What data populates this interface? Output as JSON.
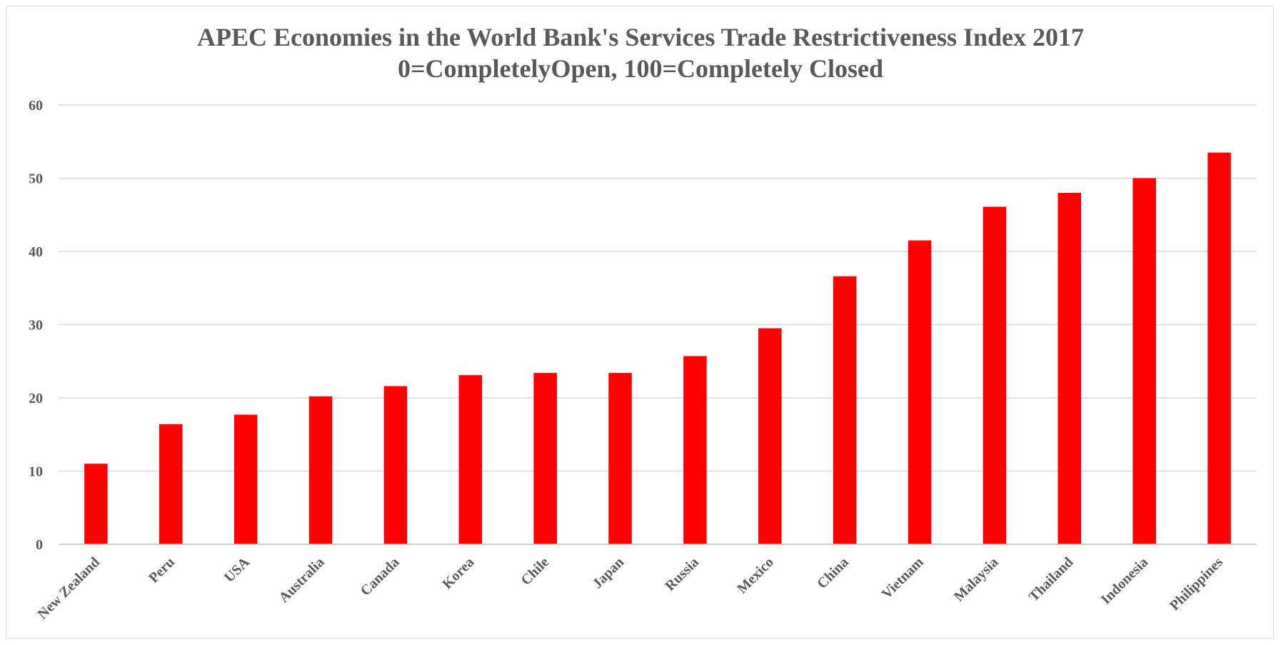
{
  "chart_data": {
    "type": "bar",
    "title_line1": "APEC Economies in the World Bank's Services Trade Restrictiveness Index 2017",
    "title_line2": "0=CompletelyOpen, 100=Completely Closed",
    "xlabel": "",
    "ylabel": "",
    "ylim": [
      0,
      60
    ],
    "yticks": [
      "0",
      "10",
      "20",
      "30",
      "40",
      "50",
      "60"
    ],
    "grid": true,
    "legend": "none",
    "bar_color": "#FF0000",
    "categories": [
      "New Zealand",
      "Peru",
      "USA",
      "Australia",
      "Canada",
      "Korea",
      "Chile",
      "Japan",
      "Russia",
      "Mexico",
      "China",
      "Vietnam",
      "Malaysia",
      "Thailand",
      "Indonesia",
      "Philippines"
    ],
    "values": [
      11.0,
      16.4,
      17.7,
      20.2,
      21.6,
      23.1,
      23.4,
      23.4,
      25.7,
      29.5,
      36.6,
      41.5,
      46.1,
      48.0,
      50.0,
      53.5
    ]
  }
}
